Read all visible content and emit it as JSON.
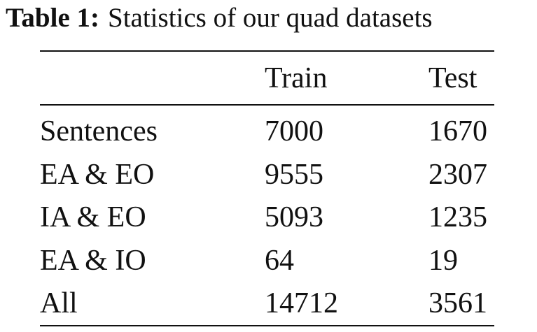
{
  "caption": {
    "label": "Table 1:",
    "text": "Statistics of our quad datasets"
  },
  "table": {
    "header": [
      "Train",
      "Test"
    ],
    "rows": [
      [
        "Sentences",
        7000,
        1670
      ],
      [
        "EA & EO",
        9555,
        2307
      ],
      [
        "IA & EO",
        5093,
        1235
      ],
      [
        "EA & IO",
        64,
        19
      ],
      [
        "All",
        14712,
        3561
      ]
    ]
  }
}
